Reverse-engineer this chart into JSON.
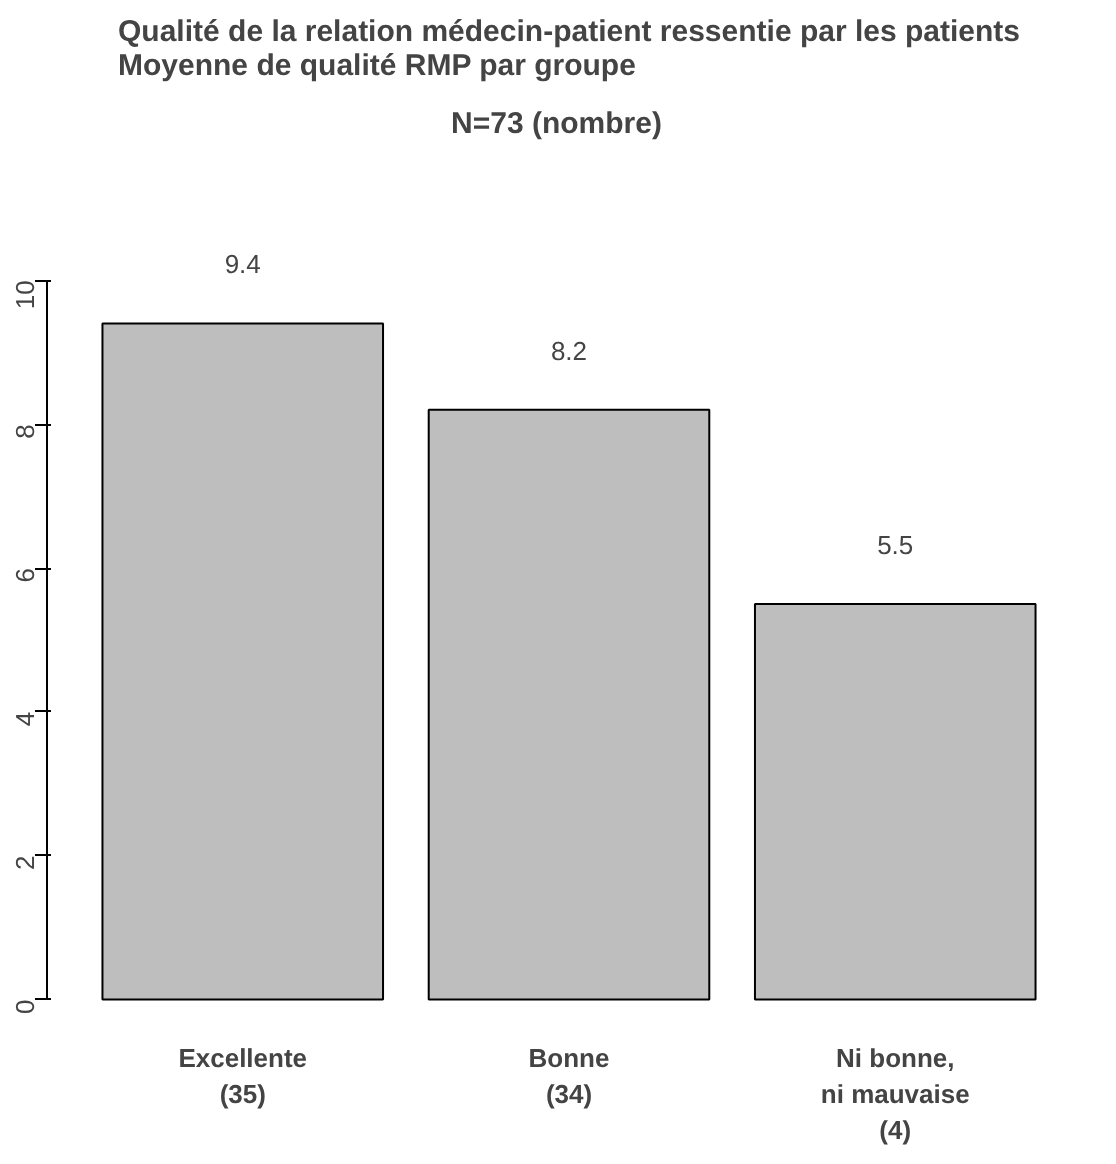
{
  "chart_data": {
    "type": "bar",
    "title": "Qualité de la relation médecin-patient ressentie par les patients\nMoyenne de qualité RMP par groupe",
    "subtitle": "N=73    (nombre)",
    "categories": [
      "Excellente\n(35)",
      "Bonne\n(34)",
      "Ni bonne,\nni mauvaise\n(4)"
    ],
    "values": [
      9.4,
      8.2,
      5.5
    ],
    "color": "#bebebe",
    "data_labels": true,
    "ylim": [
      0,
      10
    ],
    "yticks": [
      0,
      2,
      4,
      6,
      8,
      10
    ],
    "grid": false
  }
}
